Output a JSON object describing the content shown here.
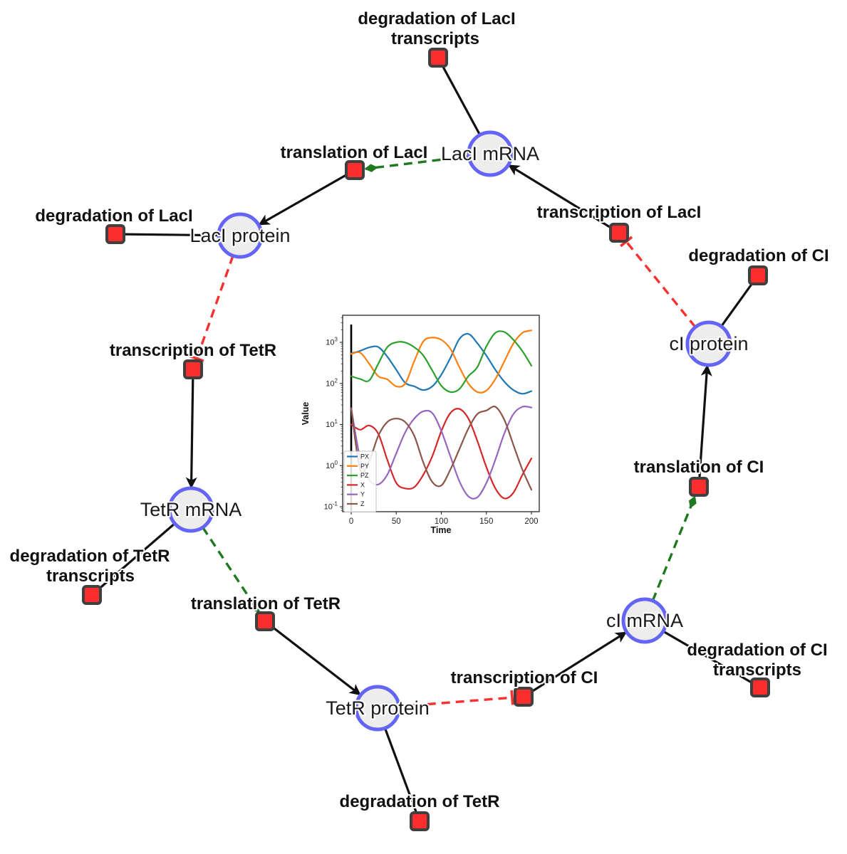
{
  "diagram": {
    "species": [
      {
        "id": "laci-mrna",
        "label": "LacI mRNA"
      },
      {
        "id": "laci-protein",
        "label": "LacI protein"
      },
      {
        "id": "tetr-mrna",
        "label": "TetR mRNA"
      },
      {
        "id": "tetr-protein",
        "label": "TetR protein"
      },
      {
        "id": "ci-mrna",
        "label": "cI mRNA"
      },
      {
        "id": "ci-protein",
        "label": "cI protein"
      }
    ],
    "reactions": [
      {
        "id": "deg-laci-transcripts",
        "line1": "degradation of LacI",
        "line2": "transcripts"
      },
      {
        "id": "translation-laci",
        "label": "translation of LacI"
      },
      {
        "id": "deg-laci",
        "label": "degradation of LacI"
      },
      {
        "id": "transcription-laci",
        "label": "transcription of LacI"
      },
      {
        "id": "deg-ci",
        "label": "degradation of CI"
      },
      {
        "id": "transcription-tetr",
        "label": "transcription of TetR"
      },
      {
        "id": "translation-ci",
        "label": "translation of CI"
      },
      {
        "id": "deg-tetr-transcripts",
        "line1": "degradation of TetR",
        "line2": "transcripts"
      },
      {
        "id": "translation-tetr",
        "label": "translation of TetR"
      },
      {
        "id": "deg-ci-transcripts",
        "line1": "degradation of CI",
        "line2": "transcripts"
      },
      {
        "id": "transcription-ci",
        "label": "transcription of CI"
      },
      {
        "id": "deg-tetr",
        "label": "degradation of TetR"
      }
    ],
    "edges": [
      {
        "source": "transcription of LacI",
        "target": "LacI mRNA",
        "type": "production-arrow"
      },
      {
        "source": "LacI mRNA",
        "target": "degradation of LacI transcripts",
        "type": "consumption-line"
      },
      {
        "source": "LacI mRNA",
        "target": "translation of LacI",
        "type": "modifier-green-dashed"
      },
      {
        "source": "translation of LacI",
        "target": "LacI protein",
        "type": "production-arrow"
      },
      {
        "source": "LacI protein",
        "target": "degradation of LacI",
        "type": "consumption-line"
      },
      {
        "source": "LacI protein",
        "target": "transcription of TetR",
        "type": "inhibition-red-dashed"
      },
      {
        "source": "transcription of TetR",
        "target": "TetR mRNA",
        "type": "production-arrow"
      },
      {
        "source": "TetR mRNA",
        "target": "degradation of TetR transcripts",
        "type": "consumption-line"
      },
      {
        "source": "TetR mRNA",
        "target": "translation of TetR",
        "type": "modifier-green-dashed"
      },
      {
        "source": "translation of TetR",
        "target": "TetR protein",
        "type": "production-arrow"
      },
      {
        "source": "TetR protein",
        "target": "degradation of TetR",
        "type": "consumption-line"
      },
      {
        "source": "TetR protein",
        "target": "transcription of CI",
        "type": "inhibition-red-dashed"
      },
      {
        "source": "transcription of CI",
        "target": "cI mRNA",
        "type": "production-arrow"
      },
      {
        "source": "cI mRNA",
        "target": "degradation of CI transcripts",
        "type": "consumption-line"
      },
      {
        "source": "cI mRNA",
        "target": "translation of CI",
        "type": "modifier-green-dashed"
      },
      {
        "source": "translation of CI",
        "target": "cI protein",
        "type": "production-arrow"
      },
      {
        "source": "cI protein",
        "target": "degradation of CI",
        "type": "consumption-line"
      },
      {
        "source": "cI protein",
        "target": "transcription of LacI",
        "type": "inhibition-red-dashed"
      }
    ],
    "colors": {
      "species_fill": "#ededed",
      "species_border": "#6464f5",
      "reaction_fill": "#fb2d2d",
      "reaction_border": "#3f3f3f",
      "edge_black": "#111111",
      "edge_modifier_green": "#1f7a1f",
      "edge_inhibition_red": "#f73030"
    }
  },
  "chart_data": {
    "type": "line",
    "title": "",
    "xlabel": "Time",
    "ylabel": "Value",
    "x_ticks": [
      0,
      50,
      100,
      150,
      200
    ],
    "y_scale": "log",
    "y_ticks": [
      0.1,
      1,
      10,
      100,
      1000
    ],
    "y_tick_exponents": [
      -1,
      0,
      1,
      2,
      3
    ],
    "xlim": [
      -9.5,
      208.7
    ],
    "ylim": [
      0.076,
      4550
    ],
    "grid": false,
    "legend_position": "lower left",
    "annotations": {
      "initial_spike_vline_x": 0
    },
    "x": [
      0,
      10,
      20,
      30,
      40,
      50,
      60,
      70,
      80,
      90,
      100,
      110,
      120,
      130,
      140,
      150,
      160,
      170,
      180,
      190,
      200
    ],
    "series": [
      {
        "name": "PX",
        "color": "#1f77b4",
        "values": [
          540,
          620,
          750,
          770,
          450,
          215,
          103,
          85,
          69,
          85,
          163,
          415,
          1200,
          1600,
          950,
          475,
          215,
          110,
          69,
          56,
          65
        ]
      },
      {
        "name": "PY",
        "color": "#ff7f0e",
        "values": [
          520,
          560,
          300,
          150,
          126,
          85,
          100,
          350,
          1050,
          1300,
          1150,
          700,
          250,
          100,
          62,
          67,
          128,
          346,
          940,
          1700,
          1950
        ]
      },
      {
        "name": "PZ",
        "color": "#2ca02c",
        "values": [
          150,
          128,
          118,
          300,
          760,
          1000,
          990,
          760,
          480,
          206,
          88,
          62,
          73,
          150,
          250,
          800,
          1700,
          1780,
          1150,
          610,
          270
        ]
      },
      {
        "name": "X",
        "color": "#d62728",
        "values": [
          10,
          7.5,
          9.5,
          6.0,
          1.4,
          0.38,
          0.28,
          0.3,
          0.6,
          1.7,
          6.9,
          19,
          24,
          14,
          4.0,
          0.92,
          0.28,
          0.16,
          0.22,
          0.6,
          1.5
        ]
      },
      {
        "name": "Y",
        "color": "#9467bd",
        "values": [
          25,
          1.5,
          0.45,
          0.35,
          0.6,
          2.0,
          6.5,
          14,
          21,
          19,
          7.0,
          1.7,
          0.42,
          0.18,
          0.17,
          0.38,
          1.4,
          6.1,
          18,
          27,
          26
        ]
      },
      {
        "name": "Z",
        "color": "#8c564b",
        "values": [
          25,
          0.8,
          1.3,
          5.3,
          11.5,
          14,
          11.5,
          5.3,
          1.2,
          0.4,
          0.33,
          0.8,
          2.5,
          8,
          18,
          22,
          27,
          13,
          3.2,
          0.8,
          0.26
        ]
      }
    ]
  }
}
